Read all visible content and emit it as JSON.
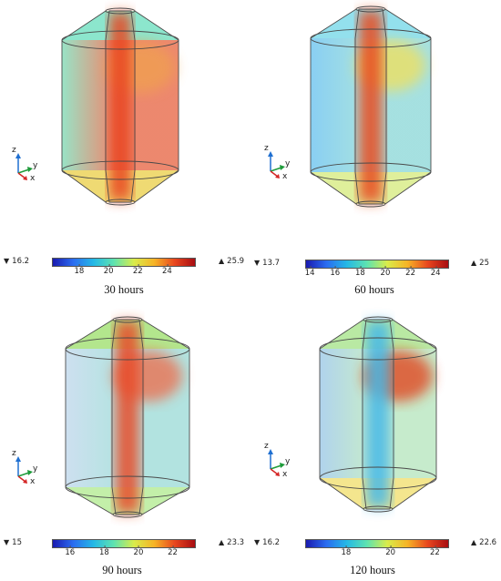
{
  "colormap": [
    "#1a1ab0",
    "#2a6cf0",
    "#24b8e6",
    "#5ee3b0",
    "#d9ec4a",
    "#f6b326",
    "#e8461e",
    "#a80d12"
  ],
  "axes": {
    "z": "z",
    "y": "y",
    "x": "x"
  },
  "panels": [
    {
      "caption": "30 hours",
      "colorbar": {
        "min_label": "16.2",
        "max_label": "25.9",
        "min": 16.2,
        "max": 25.9,
        "ticks": [
          "18",
          "20",
          "22",
          "24"
        ]
      },
      "body_color": "#e86a4a",
      "left_color": "#7fdcb8",
      "core_color": "#e8421c",
      "top_color": "#6fe0c0",
      "cone_color": "#ecd35a",
      "spot_color": "#f0a050"
    },
    {
      "caption": "60 hours",
      "colorbar": {
        "min_label": "13.7",
        "max_label": "25",
        "min": 13.7,
        "max": 25,
        "ticks": [
          "14",
          "16",
          "18",
          "20",
          "22",
          "24"
        ]
      },
      "body_color": "#8fd9d9",
      "left_color": "#6cc3f0",
      "core_color": "#e84a1e",
      "top_color": "#78d8e8",
      "cone_color": "#d9ec8a",
      "spot_color": "#f2e05a"
    },
    {
      "caption": "90 hours",
      "colorbar": {
        "min_label": "15",
        "max_label": "23.3",
        "min": 15,
        "max": 23.3,
        "ticks": [
          "16",
          "18",
          "20",
          "22"
        ]
      },
      "body_color": "#9fdcd8",
      "left_color": "#c1d8ec",
      "core_color": "#e84a28",
      "top_color": "#a0e070",
      "cone_color": "#b8ec9a",
      "spot_color": "#ef6a4a"
    },
    {
      "caption": "120 hours",
      "colorbar": {
        "min_label": "16.2",
        "max_label": "22.6",
        "min": 16.2,
        "max": 22.6,
        "ticks": [
          "18",
          "20",
          "22"
        ]
      },
      "body_color": "#b8e6bf",
      "left_color": "#9cc8e8",
      "core_color": "#44b8e8",
      "top_color": "#a8e48c",
      "cone_color": "#f2e27a",
      "spot_color": "#e23c18"
    }
  ]
}
